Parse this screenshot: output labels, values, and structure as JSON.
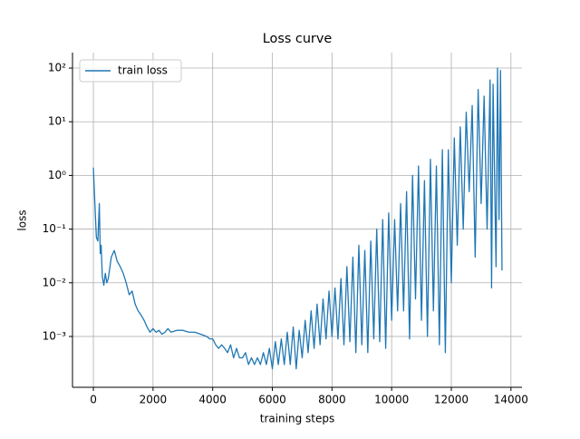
{
  "chart_data": {
    "type": "line",
    "title": "Loss curve",
    "xlabel": "training steps",
    "ylabel": "loss",
    "yscale": "log",
    "grid": true,
    "legend": "upper left",
    "xlim": [
      -700,
      14370
    ],
    "xticks": [
      0,
      2000,
      4000,
      6000,
      8000,
      10000,
      12000,
      14000
    ],
    "ylim": [
      0.000113,
      194
    ],
    "yticks": [
      {
        "value": 0.001,
        "label": "10⁻³"
      },
      {
        "value": 0.01,
        "label": "10⁻²"
      },
      {
        "value": 0.1,
        "label": "10⁻¹"
      },
      {
        "value": 1,
        "label": "10⁰"
      },
      {
        "value": 10,
        "label": "10¹"
      },
      {
        "value": 100,
        "label": "10²"
      }
    ],
    "x": [
      0,
      50,
      100,
      150,
      200,
      230,
      260,
      300,
      350,
      400,
      450,
      500,
      600,
      700,
      800,
      900,
      1000,
      1100,
      1200,
      1300,
      1400,
      1500,
      1600,
      1700,
      1800,
      1900,
      2000,
      2100,
      2200,
      2300,
      2400,
      2500,
      2600,
      2800,
      3000,
      3200,
      3400,
      3600,
      3800,
      3900,
      4000,
      4100,
      4200,
      4300,
      4400,
      4500,
      4600,
      4700,
      4800,
      4900,
      5000,
      5100,
      5200,
      5300,
      5400,
      5500,
      5600,
      5700,
      5800,
      5900,
      6000,
      6100,
      6200,
      6300,
      6400,
      6500,
      6600,
      6700,
      6800,
      6900,
      7000,
      7100,
      7200,
      7300,
      7400,
      7500,
      7600,
      7700,
      7800,
      7900,
      8000,
      8100,
      8200,
      8300,
      8400,
      8500,
      8600,
      8700,
      8800,
      8900,
      9000,
      9100,
      9200,
      9300,
      9400,
      9500,
      9600,
      9700,
      9800,
      9900,
      10000,
      10100,
      10200,
      10300,
      10400,
      10500,
      10600,
      10700,
      10800,
      10900,
      11000,
      11100,
      11200,
      11300,
      11400,
      11500,
      11600,
      11700,
      11800,
      11900,
      12000,
      12100,
      12200,
      12300,
      12400,
      12500,
      12600,
      12700,
      12800,
      12900,
      13000,
      13100,
      13200,
      13300,
      13350,
      13400,
      13500,
      13550,
      13600,
      13650,
      13700
    ],
    "series": [
      {
        "name": "train loss",
        "color": "#1f77b4",
        "values": [
          1.4,
          0.3,
          0.07,
          0.06,
          0.3,
          0.035,
          0.05,
          0.013,
          0.009,
          0.015,
          0.01,
          0.012,
          0.03,
          0.04,
          0.025,
          0.02,
          0.015,
          0.01,
          0.006,
          0.007,
          0.004,
          0.003,
          0.0025,
          0.002,
          0.0015,
          0.0012,
          0.0014,
          0.0012,
          0.0013,
          0.0011,
          0.0012,
          0.0014,
          0.0012,
          0.0013,
          0.0013,
          0.0012,
          0.0012,
          0.0011,
          0.001,
          0.0009,
          0.0009,
          0.0007,
          0.0006,
          0.0007,
          0.0006,
          0.0005,
          0.0007,
          0.0004,
          0.0006,
          0.0004,
          0.0004,
          0.0005,
          0.0003,
          0.0004,
          0.0003,
          0.0004,
          0.0003,
          0.0005,
          0.0003,
          0.0006,
          0.00025,
          0.0008,
          0.0003,
          0.0009,
          0.0003,
          0.0012,
          0.0003,
          0.0015,
          0.00025,
          0.0013,
          0.0004,
          0.002,
          0.0005,
          0.003,
          0.0006,
          0.004,
          0.0007,
          0.005,
          0.0009,
          0.007,
          0.001,
          0.008,
          0.0009,
          0.012,
          0.0007,
          0.02,
          0.0008,
          0.03,
          0.0005,
          0.05,
          0.0007,
          0.04,
          0.0005,
          0.06,
          0.0009,
          0.1,
          0.0008,
          0.15,
          0.0006,
          0.2,
          0.002,
          0.15,
          0.003,
          0.3,
          0.003,
          0.5,
          0.0009,
          1,
          0.005,
          1.5,
          0.002,
          0.8,
          0.001,
          2,
          0.003,
          1.5,
          0.0007,
          3,
          0.0005,
          3,
          0.01,
          5,
          0.05,
          8,
          0.1,
          15,
          0.5,
          20,
          0.03,
          40,
          0.3,
          30,
          0.1,
          60,
          0.008,
          50,
          0.02,
          100,
          0.15,
          90,
          0.017
        ]
      }
    ]
  }
}
